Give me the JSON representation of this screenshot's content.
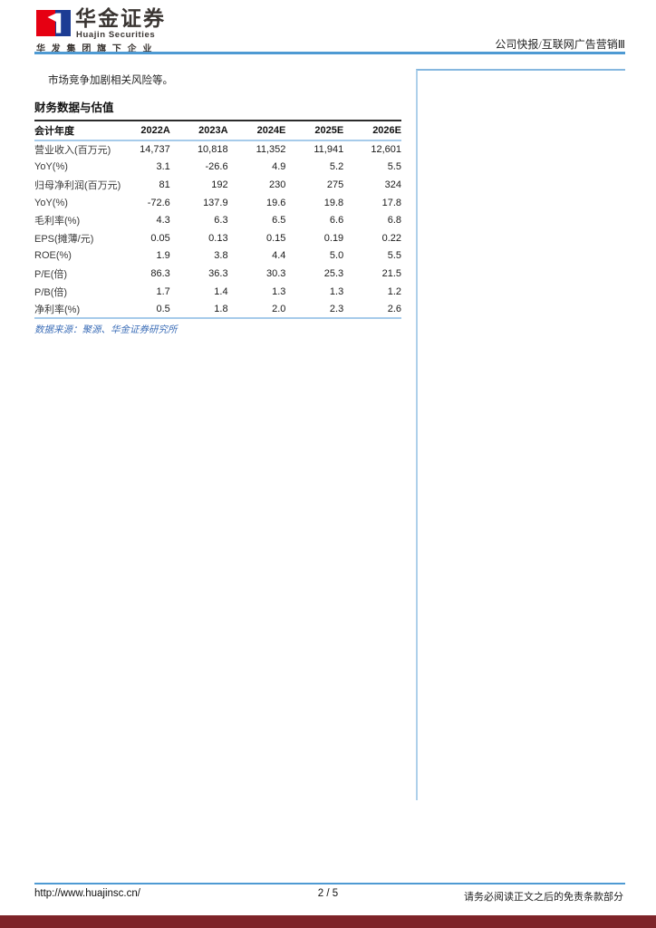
{
  "brand": {
    "name_cn": "华金证券",
    "name_en": "Huajin Securities",
    "tagline": "华 发 集 团 旗 下 企 业",
    "logo_red": "#e60012",
    "logo_blue": "#1c3c94"
  },
  "header": {
    "category": "公司快报/互联网广告营销Ⅲ"
  },
  "body": {
    "risk_text": "市场竞争加剧相关风险等。"
  },
  "fin_table": {
    "title": "财务数据与估值",
    "columns": [
      "会计年度",
      "2022A",
      "2023A",
      "2024E",
      "2025E",
      "2026E"
    ],
    "rows": [
      {
        "label": "营业收入(百万元)",
        "values": [
          "14,737",
          "10,818",
          "11,352",
          "11,941",
          "12,601"
        ]
      },
      {
        "label": "YoY(%)",
        "values": [
          "3.1",
          "-26.6",
          "4.9",
          "5.2",
          "5.5"
        ]
      },
      {
        "label": "归母净利润(百万元)",
        "values": [
          "81",
          "192",
          "230",
          "275",
          "324"
        ]
      },
      {
        "label": "YoY(%)",
        "values": [
          "-72.6",
          "137.9",
          "19.6",
          "19.8",
          "17.8"
        ]
      },
      {
        "label": "毛利率(%)",
        "values": [
          "4.3",
          "6.3",
          "6.5",
          "6.6",
          "6.8"
        ]
      },
      {
        "label": "EPS(摊薄/元)",
        "values": [
          "0.05",
          "0.13",
          "0.15",
          "0.19",
          "0.22"
        ]
      },
      {
        "label": "ROE(%)",
        "values": [
          "1.9",
          "3.8",
          "4.4",
          "5.0",
          "5.5"
        ]
      },
      {
        "label": "P/E(倍)",
        "values": [
          "86.3",
          "36.3",
          "30.3",
          "25.3",
          "21.5"
        ]
      },
      {
        "label": "P/B(倍)",
        "values": [
          "1.7",
          "1.4",
          "1.3",
          "1.3",
          "1.2"
        ]
      },
      {
        "label": "净利率(%)",
        "values": [
          "0.5",
          "1.8",
          "2.0",
          "2.3",
          "2.6"
        ]
      }
    ],
    "source": "数据来源：聚源、华金证券研究所"
  },
  "footer": {
    "url": "http://www.huajinsc.cn/",
    "page_number": "2 / 5",
    "disclaimer": "请务必阅读正文之后的免责条款部分"
  },
  "colors": {
    "rule_blue": "#4e9ad3",
    "table_line_blue": "#a6cbea",
    "table_top_border": "#2b2b2b",
    "source_text_blue": "#3e6fb8",
    "side_box_border": "#9cc3e5",
    "bottom_bar": "#7e2429"
  }
}
